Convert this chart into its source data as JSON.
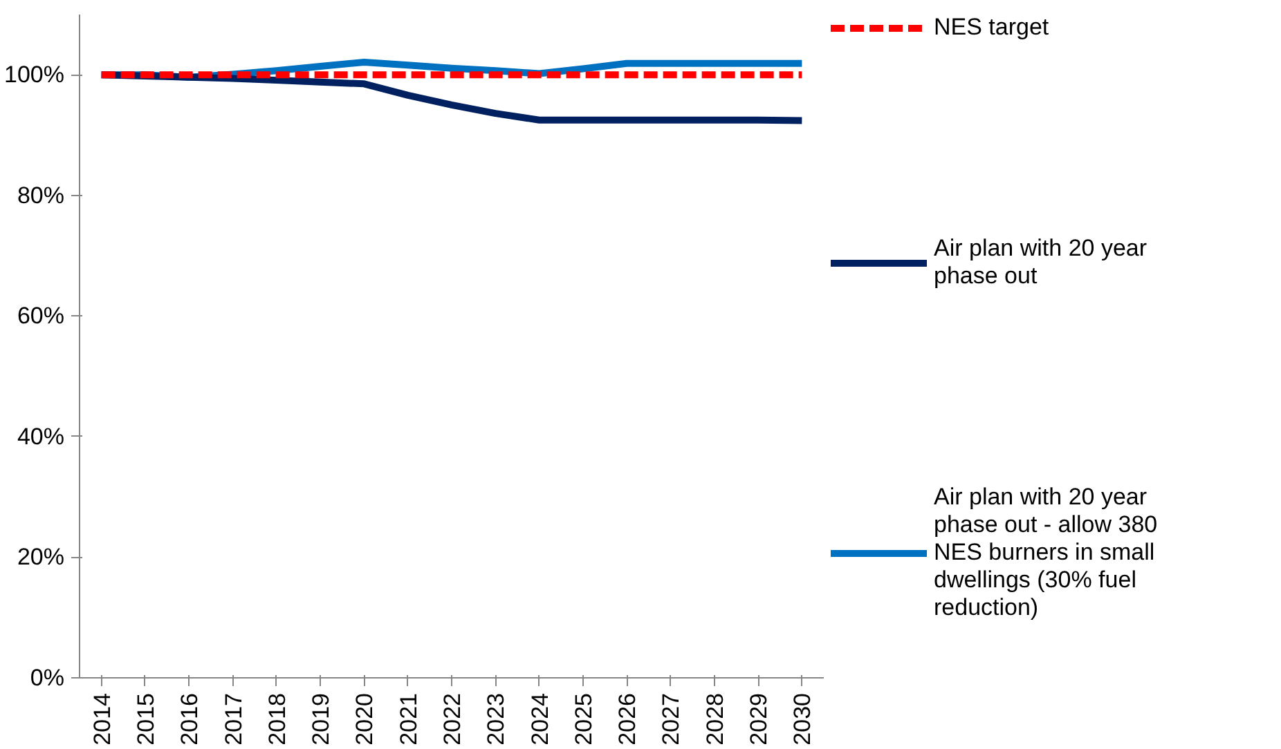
{
  "chart_data": {
    "type": "line",
    "categories": [
      "2014",
      "2015",
      "2016",
      "2017",
      "2018",
      "2019",
      "2020",
      "2021",
      "2022",
      "2023",
      "2024",
      "2025",
      "2026",
      "2027",
      "2028",
      "2029",
      "2030"
    ],
    "ylim": [
      0,
      110
    ],
    "yticks": [
      {
        "value": 0,
        "label": "0%"
      },
      {
        "value": 20,
        "label": "20%"
      },
      {
        "value": 40,
        "label": "40%"
      },
      {
        "value": 60,
        "label": "60%"
      },
      {
        "value": 80,
        "label": "80%"
      },
      {
        "value": 100,
        "label": "100%"
      }
    ],
    "grid": false,
    "legend": "right",
    "marker": "none",
    "series": [
      {
        "name": "NES target",
        "color": "#ff0000",
        "line_style": "dashed",
        "values": [
          100,
          100,
          100,
          100,
          100,
          100,
          100,
          100,
          100,
          100,
          100,
          100,
          100,
          100,
          100,
          100,
          100
        ]
      },
      {
        "name": "Air plan with 20 year phase out",
        "color": "#002060",
        "line_style": "solid",
        "values": [
          100,
          99.8,
          99.6,
          99.4,
          99.1,
          98.8,
          98.5,
          96.6,
          95.0,
          93.6,
          92.5,
          92.5,
          92.5,
          92.5,
          92.5,
          92.5,
          92.4
        ]
      },
      {
        "name": "Air plan with 20 year phase out - allow 380 NES burners in small dwellings (30% fuel reduction)",
        "color": "#0070c0",
        "line_style": "solid",
        "values": [
          100,
          100,
          99.6,
          100.1,
          100.7,
          101.4,
          102.1,
          101.6,
          101.1,
          100.7,
          100.2,
          101.0,
          101.9,
          101.9,
          101.9,
          101.9,
          101.9
        ]
      }
    ]
  }
}
